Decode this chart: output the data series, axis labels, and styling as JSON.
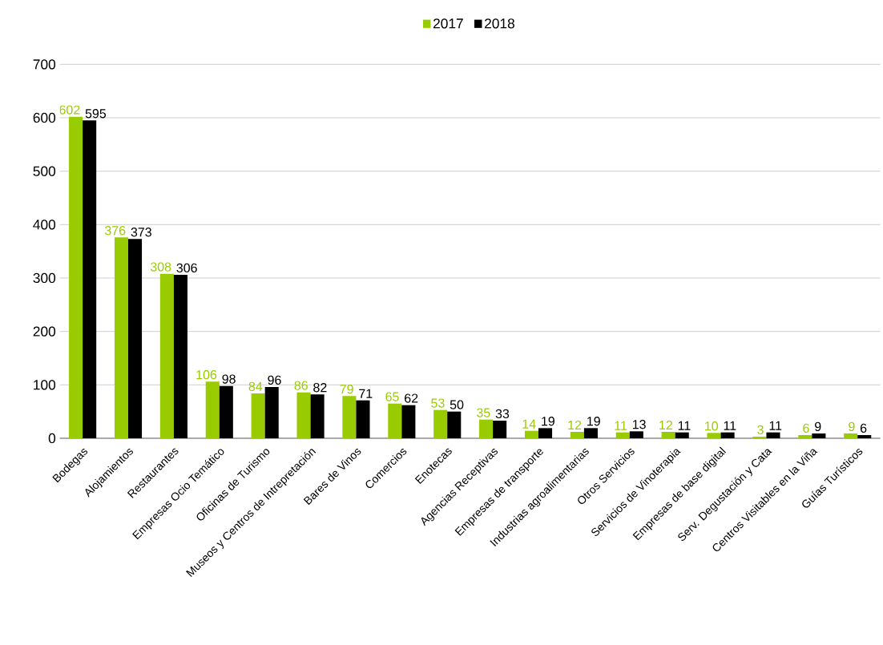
{
  "chart_data": {
    "type": "bar",
    "categories": [
      "Bodegas",
      "Alojamientos",
      "Restaurantes",
      "Empresas Ocio Temático",
      "Oficinas de Turismo",
      "Museos y Centros de Intrepretación",
      "Bares de Vinos",
      "Comercios",
      "Enotecas",
      "Agencias Receptivas",
      "Empresas de transporte",
      "Industrias agroalimentarias",
      "Otros Servicios",
      "Servicios de Vinoterapia",
      "Empresas de base digital",
      "Serv. Degustación y Cata",
      "Centros Visitables en la Viña",
      "Guías Turísticos"
    ],
    "series": [
      {
        "name": "2017",
        "color": "#99cc00",
        "values": [
          602,
          376,
          308,
          106,
          84,
          86,
          79,
          65,
          53,
          35,
          14,
          12,
          11,
          12,
          10,
          3,
          6,
          9
        ]
      },
      {
        "name": "2018",
        "color": "#000000",
        "values": [
          595,
          373,
          306,
          98,
          96,
          82,
          71,
          62,
          50,
          33,
          19,
          19,
          13,
          11,
          11,
          11,
          9,
          6
        ]
      }
    ],
    "ylim": [
      0,
      700
    ],
    "yticks": [
      0,
      100,
      200,
      300,
      400,
      500,
      600,
      700
    ],
    "grid": "y",
    "legend": "top",
    "data_labels": true
  }
}
